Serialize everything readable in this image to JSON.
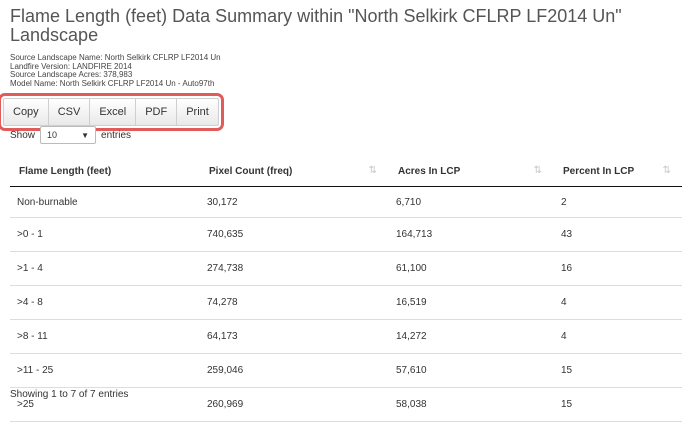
{
  "title": "Flame Length (feet) Data Summary within \"North Selkirk CFLRP LF2014 Un\" Landscape",
  "meta": [
    "Source Landscape Name: North Selkirk CFLRP LF2014 Un",
    "Landfire Version: LANDFIRE 2014",
    "Source Landscape Acres: 378,983",
    "Model Name: North Selkirk CFLRP LF2014 Un - Auto97th"
  ],
  "buttons": [
    "Copy",
    "CSV",
    "Excel",
    "PDF",
    "Print"
  ],
  "length": {
    "show_label": "Show",
    "value": "10",
    "entries_label": "entries",
    "caret_icon": "▼"
  },
  "table": {
    "sort_icon": "⇅",
    "columns": [
      "Flame Length (feet)",
      "Pixel Count (freq)",
      "Acres In LCP",
      "Percent In LCP"
    ],
    "rows": [
      [
        "Non-burnable",
        "30,172",
        "6,710",
        "2"
      ],
      [
        ">0 - 1",
        "740,635",
        "164,713",
        "43"
      ],
      [
        ">1 - 4",
        "274,738",
        "61,100",
        "16"
      ],
      [
        ">4 - 8",
        "74,278",
        "16,519",
        "4"
      ],
      [
        ">8 - 11",
        "64,173",
        "14,272",
        "4"
      ],
      [
        ">11 - 25",
        "259,046",
        "57,610",
        "15"
      ],
      [
        ">25",
        "260,969",
        "58,038",
        "15"
      ]
    ]
  },
  "info": "Showing 1 to 7 of 7 entries"
}
